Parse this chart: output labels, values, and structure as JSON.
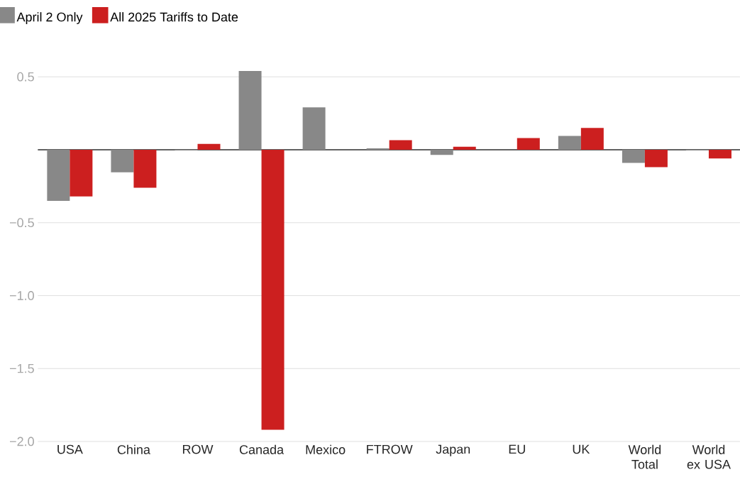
{
  "chart_data": {
    "type": "bar",
    "categories": [
      "USA",
      "China",
      "ROW",
      "Canada",
      "Mexico",
      "FTROW",
      "Japan",
      "EU",
      "UK",
      "World Total",
      "World ex USA"
    ],
    "series": [
      {
        "name": "April 2 Only",
        "color": "#888888",
        "values": [
          -0.35,
          -0.155,
          -0.005,
          0.54,
          0.29,
          0.01,
          -0.035,
          null,
          0.095,
          -0.09,
          -0.005
        ]
      },
      {
        "name": "All 2025 Tariffs to Date",
        "color": "#cc1f1f",
        "values": [
          -0.32,
          -0.26,
          0.04,
          -1.92,
          null,
          0.065,
          0.02,
          0.08,
          0.15,
          -0.12,
          -0.06
        ]
      }
    ],
    "ylim": [
      -2.0,
      0.54
    ],
    "yticks": [
      {
        "value": -2.0,
        "label": "−2.0"
      },
      {
        "value": -1.5,
        "label": "−1.5"
      },
      {
        "value": -1.0,
        "label": "−1.0"
      },
      {
        "value": -0.5,
        "label": "−0.5"
      },
      {
        "value": 0,
        "label": null
      },
      0.5
    ],
    "grid": "y",
    "legend": "top left"
  }
}
